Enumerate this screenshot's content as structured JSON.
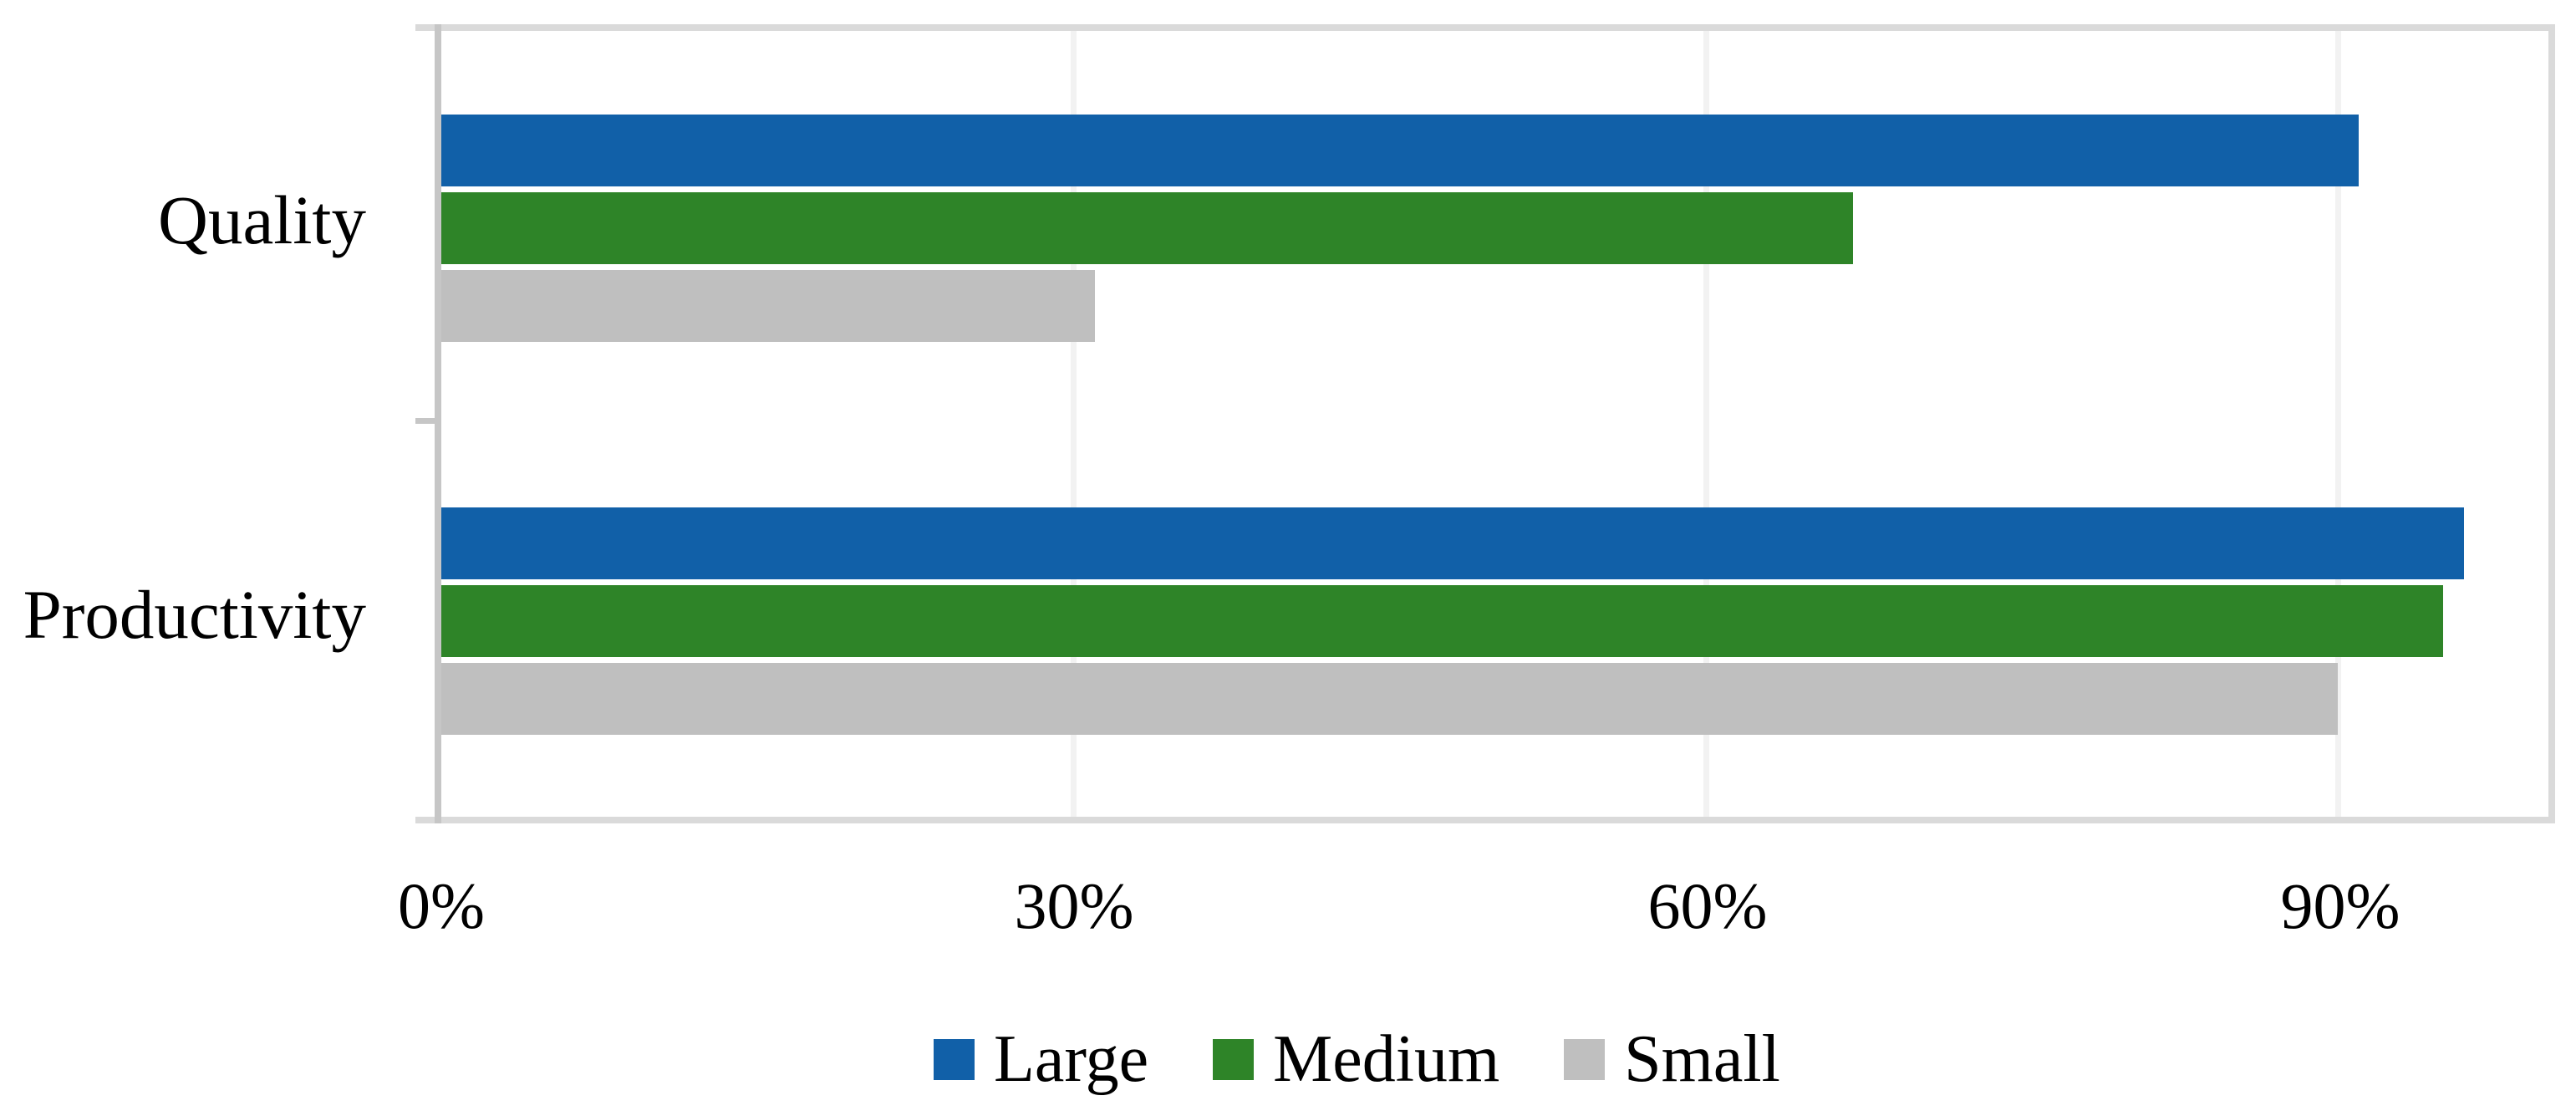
{
  "chart_data": {
    "type": "bar",
    "orientation": "horizontal",
    "title": "",
    "xlabel": "",
    "ylabel": "",
    "categories": [
      "Quality",
      "Productivity"
    ],
    "series": [
      {
        "name": "Large",
        "color": "#1160A8",
        "values": [
          91,
          96
        ]
      },
      {
        "name": "Medium",
        "color": "#2E8428",
        "values": [
          67,
          95
        ]
      },
      {
        "name": "Small",
        "color": "#BFBFBF",
        "values": [
          31,
          90
        ]
      }
    ],
    "value_unit": "%",
    "x_axis": {
      "min": 0,
      "max": 100,
      "tick_values": [
        0,
        30,
        60,
        90
      ],
      "tick_labels": [
        "0%",
        "30%",
        "60%",
        "90%"
      ]
    },
    "grid": true,
    "gridline_color": "#F2F2F2",
    "frame_color": "#DADADA",
    "axis_line_color": "#C6C6C6",
    "legend": {
      "position": "bottom",
      "entries": [
        "Large",
        "Medium",
        "Small"
      ]
    }
  }
}
